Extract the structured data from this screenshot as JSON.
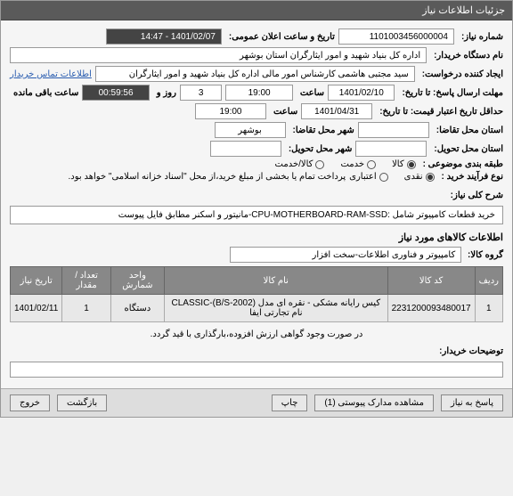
{
  "header": "جزئیات اطلاعات نیاز",
  "fields": {
    "need_number_label": "شماره نیاز:",
    "need_number": "1101003456000004",
    "public_date_label": "تاریخ و ساعت اعلان عمومی:",
    "public_date": "1401/02/07 - 14:47",
    "org_label": "نام دستگاه خریدار:",
    "org": "اداره کل بنیاد شهید و امور ایثارگران استان بوشهر",
    "creator_label": "ایجاد کننده درخواست:",
    "creator": "سید مجتبی هاشمی کارشناس امور مالی اداره کل بنیاد شهید و امور ایثارگران",
    "contact_link": "اطلاعات تماس خریدار",
    "deadline_label": "مهلت ارسال پاسخ: تا تاریخ:",
    "deadline_date": "1401/02/10",
    "time_label": "ساعت",
    "deadline_time": "19:00",
    "day_label": "روز و",
    "remaining_days": "3",
    "remaining_time": "00:59:56",
    "remaining_label": "ساعت باقی مانده",
    "validity_label": "حداقل تاریخ اعتبار قیمت: تا تاریخ:",
    "validity_date": "1401/04/31",
    "validity_time": "19:00",
    "city_request_label": "شهر محل تقاضا:",
    "city_request": "بوشهر",
    "province_request_label": "استان محل تقاضا:",
    "city_delivery_label": "شهر محل تحویل:",
    "province_delivery_label": "استان محل تحویل:",
    "category_label": "طبقه بندی موضوعی :",
    "radio_goods": "کالا",
    "radio_service": "خدمت",
    "radio_both": "کالا/خدمت",
    "process_label": "نوع فرآیند خرید :",
    "radio_paid": "نقدی",
    "radio_credit": "اعتباری",
    "payment_note": "پرداخت تمام یا بخشی از مبلغ خرید،از محل \"اسناد خزانه اسلامی\" خواهد بود."
  },
  "description": {
    "label": "شرح کلی نیاز:",
    "text": "خرید قطعات کامپیوتر شامل :CPU-MOTHERBOARD-RAM-SSD-مانیتور و اسکنر مطابق فایل پیوست"
  },
  "items_section": {
    "title": "اطلاعات کالاهای مورد نیاز",
    "group_label": "گروه کالا:",
    "group": "کامپیوتر و فناوری اطلاعات-سخت افزار"
  },
  "table": {
    "headers": [
      "ردیف",
      "کد کالا",
      "نام کالا",
      "واحد شمارش",
      "تعداد / مقدار",
      "تاریخ نیاز"
    ],
    "rows": [
      [
        "1",
        "2231200093480017",
        "کیس رایانه مشکی - نقره ای مدل CLASSIC-(B/S-2002) نام تجارتی ایفا",
        "دستگاه",
        "1",
        "1401/02/11"
      ]
    ]
  },
  "note": "در صورت وجود گواهی ارزش افزوده،بارگذاری با قید گردد.",
  "buyer_notes_label": "توضیحات خریدار:",
  "footer": {
    "reply": "پاسخ به نیاز",
    "attachments": "مشاهده مدارک پیوستی (1)",
    "print": "چاپ",
    "back": "بازگشت",
    "exit": "خروج"
  }
}
